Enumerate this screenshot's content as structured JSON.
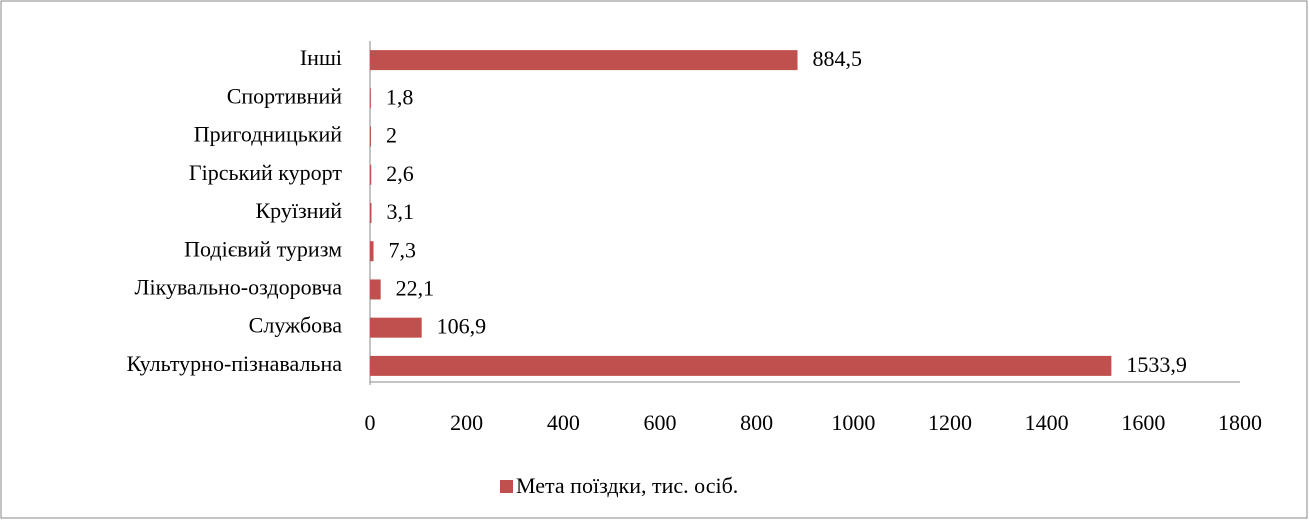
{
  "chart_data": {
    "type": "hbar",
    "categories": [
      "Інші",
      "Спортивний",
      "Пригодницький",
      "Гірський курорт",
      "Круїзний",
      "Подієвий туризм",
      "Лікувально-оздоровча",
      "Службова",
      "Культурно-пізнавальна"
    ],
    "series": [
      {
        "name": "Мета поїздки, тис. осіб.",
        "color": "#c0504d",
        "values": [
          884.5,
          1.8,
          2,
          2.6,
          3.1,
          7.3,
          22.1,
          106.9,
          1533.9
        ],
        "value_labels": [
          "884,5",
          "1,8",
          "2",
          "2,6",
          "3,1",
          "7,3",
          "22,1",
          "106,9",
          "1533,9"
        ]
      }
    ],
    "xlim": [
      0,
      1800
    ],
    "xticks": [
      0,
      200,
      400,
      600,
      800,
      1000,
      1200,
      1400,
      1600,
      1800
    ],
    "legend": "bottom"
  }
}
